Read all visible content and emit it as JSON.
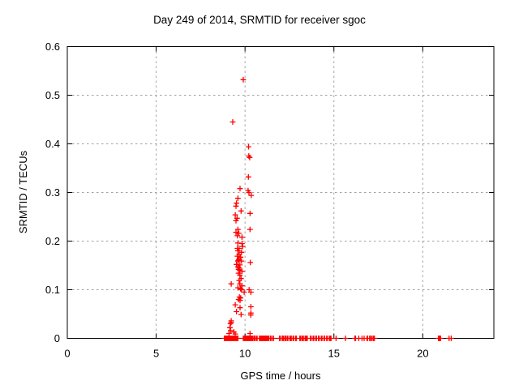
{
  "window": {
    "background": "#ffffff"
  },
  "chart_data": {
    "type": "scatter",
    "title": "Day 249 of 2014, SRMTID for receiver sgoc",
    "xlabel": "GPS time / hours",
    "ylabel": "SRMTID / TECUs",
    "xlim": [
      0,
      24
    ],
    "ylim": [
      0,
      0.6
    ],
    "xticks": [
      0,
      5,
      10,
      15,
      20
    ],
    "yticks": [
      0,
      0.1,
      0.2,
      0.3,
      0.4,
      0.5,
      0.6
    ],
    "ytick_labels": [
      "0",
      "0.1",
      "0.2",
      "0.3",
      "0.4",
      "0.5",
      "0.6"
    ],
    "xtick_labels": [
      "0",
      "5",
      "10",
      "15",
      "20"
    ],
    "grid": true,
    "legend": "none",
    "marker": "plus",
    "marker_color": "#ff0000",
    "grid_color": "#a0a0a0",
    "border_color": "#000000",
    "series_name": "SRMTID",
    "points": [
      [
        9.9,
        0.532
      ],
      [
        9.31,
        0.445
      ],
      [
        10.2,
        0.394
      ],
      [
        10.21,
        0.375
      ],
      [
        10.26,
        0.372
      ],
      [
        10.19,
        0.332
      ],
      [
        9.72,
        0.308
      ],
      [
        10.17,
        0.304
      ],
      [
        10.22,
        0.3
      ],
      [
        10.35,
        0.294
      ],
      [
        9.6,
        0.288
      ],
      [
        9.52,
        0.278
      ],
      [
        9.49,
        0.272
      ],
      [
        9.78,
        0.262
      ],
      [
        10.28,
        0.257
      ],
      [
        9.45,
        0.254
      ],
      [
        9.55,
        0.247
      ],
      [
        9.49,
        0.242
      ],
      [
        9.6,
        0.224
      ],
      [
        10.28,
        0.224
      ],
      [
        9.49,
        0.218
      ],
      [
        9.65,
        0.216
      ],
      [
        9.57,
        0.211
      ],
      [
        9.83,
        0.208
      ],
      [
        9.6,
        0.196
      ],
      [
        9.83,
        0.195
      ],
      [
        9.87,
        0.189
      ],
      [
        9.57,
        0.185
      ],
      [
        9.67,
        0.185
      ],
      [
        9.6,
        0.18
      ],
      [
        9.8,
        0.177
      ],
      [
        9.67,
        0.173
      ],
      [
        9.57,
        0.169
      ],
      [
        9.75,
        0.167
      ],
      [
        9.67,
        0.163
      ],
      [
        9.63,
        0.161
      ],
      [
        9.6,
        0.159
      ],
      [
        9.8,
        0.159
      ],
      [
        10.3,
        0.156
      ],
      [
        9.52,
        0.152
      ],
      [
        9.71,
        0.151
      ],
      [
        9.6,
        0.147
      ],
      [
        9.67,
        0.145
      ],
      [
        9.63,
        0.142
      ],
      [
        9.7,
        0.14
      ],
      [
        9.83,
        0.138
      ],
      [
        9.63,
        0.134
      ],
      [
        9.71,
        0.13
      ],
      [
        9.78,
        0.123
      ],
      [
        9.67,
        0.119
      ],
      [
        9.22,
        0.112
      ],
      [
        9.71,
        0.112
      ],
      [
        9.83,
        0.108
      ],
      [
        9.6,
        0.104
      ],
      [
        9.75,
        0.102
      ],
      [
        9.8,
        0.1
      ],
      [
        10.23,
        0.1
      ],
      [
        9.95,
        0.095
      ],
      [
        10.33,
        0.095
      ],
      [
        9.68,
        0.085
      ],
      [
        9.75,
        0.083
      ],
      [
        9.63,
        0.08
      ],
      [
        9.72,
        0.078
      ],
      [
        9.45,
        0.069
      ],
      [
        10.33,
        0.065
      ],
      [
        9.72,
        0.063
      ],
      [
        9.52,
        0.055
      ],
      [
        10.33,
        0.052
      ],
      [
        9.78,
        0.049
      ],
      [
        10.32,
        0.048
      ],
      [
        9.22,
        0.036
      ],
      [
        9.22,
        0.033
      ],
      [
        9.18,
        0.03
      ],
      [
        9.15,
        0.022
      ],
      [
        9.19,
        0.016
      ],
      [
        9.37,
        0.013
      ],
      [
        9.1,
        0.01
      ],
      [
        10.28,
        0.01
      ],
      [
        9.45,
        0.009
      ],
      [
        8.84,
        0
      ],
      [
        8.88,
        0
      ],
      [
        8.92,
        0
      ],
      [
        8.96,
        0
      ],
      [
        9.0,
        0
      ],
      [
        9.04,
        0
      ],
      [
        9.08,
        0
      ],
      [
        9.12,
        0
      ],
      [
        9.16,
        0
      ],
      [
        9.2,
        0
      ],
      [
        9.24,
        0
      ],
      [
        9.28,
        0
      ],
      [
        9.32,
        0
      ],
      [
        9.36,
        0
      ],
      [
        9.4,
        0
      ],
      [
        9.44,
        0
      ],
      [
        9.48,
        0
      ],
      [
        9.52,
        0
      ],
      [
        9.56,
        0
      ],
      [
        9.6,
        0
      ],
      [
        9.9,
        0
      ],
      [
        9.95,
        0
      ],
      [
        10.0,
        0
      ],
      [
        10.05,
        0
      ],
      [
        10.1,
        0
      ],
      [
        10.15,
        0
      ],
      [
        10.2,
        0
      ],
      [
        10.25,
        0
      ],
      [
        10.3,
        0
      ],
      [
        10.35,
        0
      ],
      [
        10.4,
        0
      ],
      [
        10.45,
        0
      ],
      [
        10.52,
        0
      ],
      [
        10.56,
        0
      ],
      [
        10.64,
        0
      ],
      [
        10.68,
        0
      ],
      [
        10.81,
        0
      ],
      [
        10.85,
        0
      ],
      [
        10.89,
        0
      ],
      [
        10.93,
        0
      ],
      [
        10.97,
        0
      ],
      [
        11.01,
        0
      ],
      [
        11.05,
        0
      ],
      [
        11.09,
        0
      ],
      [
        11.13,
        0
      ],
      [
        11.17,
        0
      ],
      [
        11.21,
        0
      ],
      [
        11.25,
        0
      ],
      [
        11.29,
        0
      ],
      [
        11.33,
        0
      ],
      [
        11.42,
        0
      ],
      [
        11.46,
        0
      ],
      [
        11.56,
        0
      ],
      [
        11.6,
        0
      ],
      [
        11.94,
        0
      ],
      [
        11.98,
        0
      ],
      [
        12.09,
        0
      ],
      [
        12.13,
        0
      ],
      [
        12.17,
        0
      ],
      [
        12.25,
        0
      ],
      [
        12.29,
        0
      ],
      [
        12.37,
        0
      ],
      [
        12.41,
        0
      ],
      [
        12.52,
        0
      ],
      [
        12.56,
        0
      ],
      [
        12.6,
        0
      ],
      [
        12.7,
        0
      ],
      [
        12.74,
        0
      ],
      [
        12.85,
        0
      ],
      [
        12.89,
        0
      ],
      [
        13.08,
        0
      ],
      [
        13.12,
        0
      ],
      [
        13.2,
        0
      ],
      [
        13.24,
        0
      ],
      [
        13.28,
        0
      ],
      [
        13.38,
        0
      ],
      [
        13.42,
        0
      ],
      [
        13.46,
        0
      ],
      [
        13.5,
        0
      ],
      [
        13.68,
        0
      ],
      [
        13.72,
        0
      ],
      [
        13.83,
        0
      ],
      [
        13.87,
        0
      ],
      [
        13.98,
        0
      ],
      [
        14.02,
        0
      ],
      [
        14.13,
        0
      ],
      [
        14.17,
        0
      ],
      [
        14.29,
        0
      ],
      [
        14.33,
        0
      ],
      [
        14.44,
        0
      ],
      [
        14.48,
        0
      ],
      [
        14.59,
        0
      ],
      [
        14.63,
        0
      ],
      [
        14.74,
        0
      ],
      [
        14.78,
        0
      ],
      [
        14.84,
        0
      ],
      [
        15.12,
        0
      ],
      [
        15.65,
        0
      ],
      [
        16.18,
        0
      ],
      [
        16.22,
        0
      ],
      [
        16.4,
        0
      ],
      [
        16.58,
        0
      ],
      [
        16.7,
        0
      ],
      [
        16.86,
        0
      ],
      [
        16.9,
        0
      ],
      [
        17.01,
        0
      ],
      [
        17.08,
        0
      ],
      [
        17.15,
        0
      ],
      [
        17.23,
        0
      ],
      [
        17.28,
        0
      ],
      [
        20.88,
        0
      ],
      [
        20.92,
        0
      ],
      [
        20.96,
        0
      ],
      [
        21.0,
        0
      ],
      [
        21.48,
        0
      ],
      [
        21.6,
        0
      ]
    ]
  }
}
